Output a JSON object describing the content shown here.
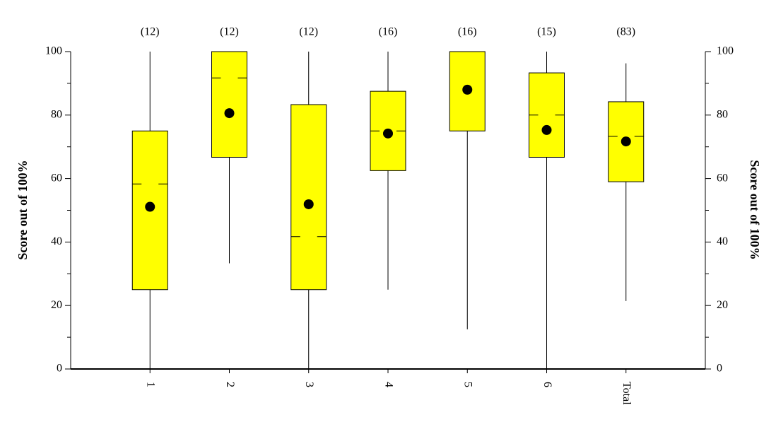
{
  "chart_data": {
    "type": "box",
    "y_label": "Score out of 100%",
    "y2_label": "Score out of 100%",
    "categories": [
      "1",
      "2",
      "3",
      "4",
      "5",
      "6",
      "Total"
    ],
    "n_labels": [
      "(12)",
      "(12)",
      "(12)",
      "(16)",
      "(16)",
      "(15)",
      "(83)"
    ],
    "low": [
      0,
      33.3,
      0,
      25,
      12.5,
      0,
      21.4
    ],
    "q1": [
      25,
      66.7,
      25,
      62.5,
      75,
      66.7,
      59
    ],
    "median": [
      58.3,
      91.7,
      41.7,
      75,
      100,
      80,
      73.3
    ],
    "q3": [
      75,
      100,
      83.3,
      87.5,
      100,
      93.3,
      84.2
    ],
    "high": [
      100,
      100,
      100,
      100,
      100,
      100,
      96.3
    ],
    "mean": [
      51.1,
      80.6,
      51.9,
      74.2,
      88,
      75.3,
      71.7
    ],
    "color": "#ffff00",
    "ylim": [
      0,
      100
    ],
    "yticks": [
      0,
      20,
      40,
      60,
      80,
      100
    ],
    "minor_yticks": [
      10,
      30,
      50,
      70,
      90
    ],
    "y2lim": [
      0,
      100
    ],
    "y2ticks": [
      0,
      20,
      40,
      60,
      80,
      100
    ],
    "minor_y2ticks": [
      10,
      30,
      50,
      70,
      90
    ]
  }
}
